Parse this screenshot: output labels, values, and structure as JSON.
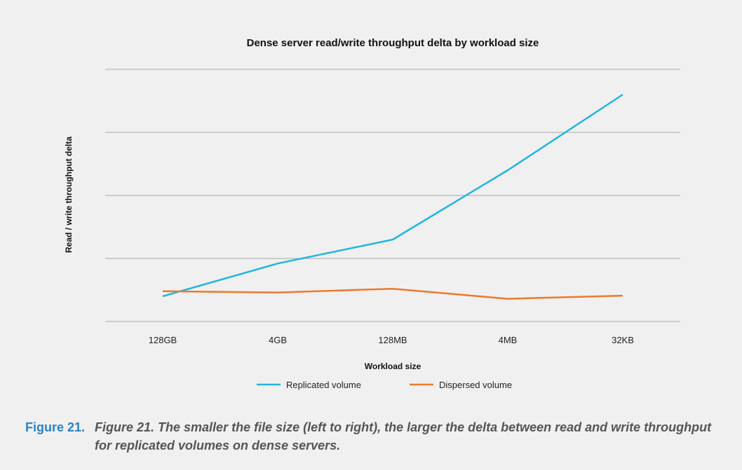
{
  "chart_data": {
    "type": "line",
    "title": "Dense server read/write throughput delta by workload size",
    "xlabel": "Workload size",
    "ylabel": "Read / write throughput delta",
    "categories": [
      "128GB",
      "4GB",
      "128MB",
      "4MB",
      "32KB"
    ],
    "ylim": [
      0,
      4
    ],
    "grid": true,
    "legend_position": "bottom",
    "series": [
      {
        "name": "Replicated volume",
        "color": "#1fb6e0",
        "values": [
          0.4,
          0.92,
          1.3,
          2.4,
          3.6
        ]
      },
      {
        "name": "Dispersed volume",
        "color": "#ed7a2b",
        "values": [
          0.48,
          0.46,
          0.52,
          0.36,
          0.41
        ]
      }
    ]
  },
  "caption": {
    "label": "Figure 21.",
    "text": "Figure 21. The smaller the file size (left to right), the larger the delta between read and write throughput for replicated volumes on dense servers."
  }
}
